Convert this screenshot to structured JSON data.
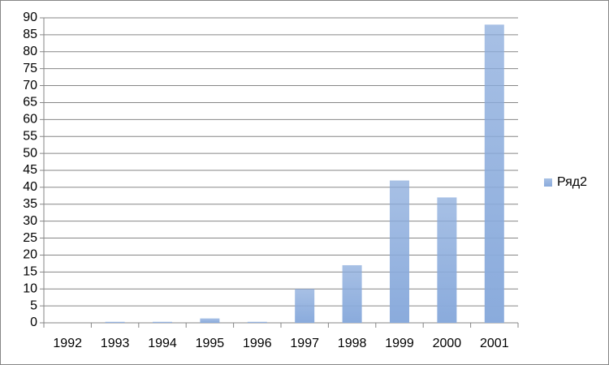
{
  "chart_data": {
    "type": "bar",
    "categories": [
      "1992",
      "1993",
      "1994",
      "1995",
      "1996",
      "1997",
      "1998",
      "1999",
      "2000",
      "2001"
    ],
    "series": [
      {
        "name": "Ряд2",
        "color": "#8aabdc",
        "values": [
          0,
          0.3,
          0.3,
          1.3,
          0.3,
          10,
          17,
          42,
          37,
          88
        ]
      }
    ],
    "ylim": [
      0,
      90
    ],
    "yticks": [
      0,
      5,
      10,
      15,
      20,
      25,
      30,
      35,
      40,
      45,
      50,
      55,
      60,
      65,
      70,
      75,
      80,
      85,
      90
    ],
    "grid": true,
    "legend": "right"
  }
}
